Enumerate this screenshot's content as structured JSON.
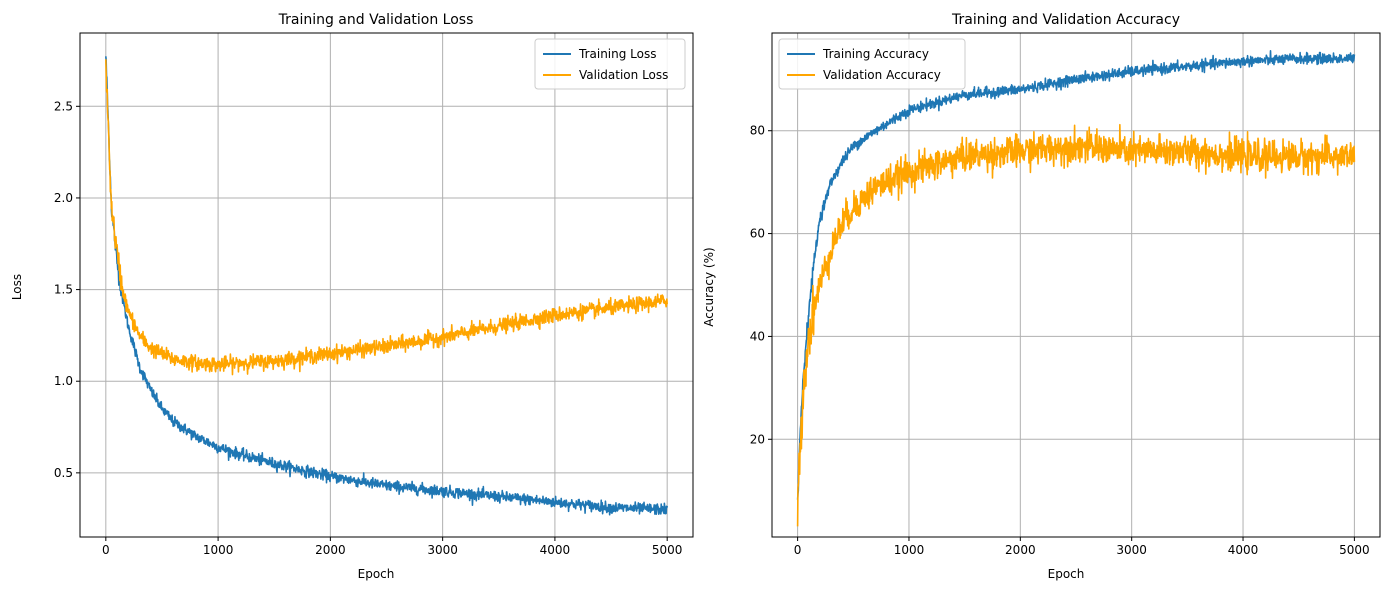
{
  "chart_data": [
    {
      "type": "line",
      "title": "Training and Validation Loss",
      "xlabel": "Epoch",
      "ylabel": "Loss",
      "xlim": [
        -230,
        5230
      ],
      "ylim": [
        0.15,
        2.9
      ],
      "xticks": [
        0,
        1000,
        2000,
        3000,
        4000,
        5000
      ],
      "xtick_labels": [
        "0",
        "1000",
        "2000",
        "3000",
        "4000",
        "5000"
      ],
      "yticks": [
        0.5,
        1.0,
        1.5,
        2.0,
        2.5
      ],
      "ytick_labels": [
        "0.5",
        "1.0",
        "1.5",
        "2.0",
        "2.5"
      ],
      "grid": true,
      "legend_position": "top-right",
      "series": [
        {
          "name": "Training Loss",
          "color": "#1f77b4",
          "x": [
            0,
            50,
            100,
            150,
            200,
            300,
            400,
            500,
            600,
            800,
            1000,
            1200,
            1500,
            2000,
            2500,
            3000,
            3500,
            4000,
            4500,
            5000
          ],
          "y": [
            2.78,
            1.95,
            1.65,
            1.45,
            1.3,
            1.08,
            0.95,
            0.85,
            0.78,
            0.7,
            0.64,
            0.6,
            0.55,
            0.48,
            0.43,
            0.4,
            0.37,
            0.34,
            0.31,
            0.3
          ],
          "noise": 0.015
        },
        {
          "name": "Validation Loss",
          "color": "#ffa500",
          "x": [
            0,
            50,
            100,
            150,
            200,
            300,
            400,
            500,
            600,
            800,
            1000,
            1200,
            1500,
            2000,
            2500,
            3000,
            3500,
            4000,
            4500,
            5000
          ],
          "y": [
            2.73,
            1.95,
            1.7,
            1.5,
            1.38,
            1.25,
            1.18,
            1.15,
            1.12,
            1.1,
            1.09,
            1.1,
            1.11,
            1.15,
            1.19,
            1.24,
            1.3,
            1.36,
            1.4,
            1.44
          ],
          "noise": 0.02
        }
      ]
    },
    {
      "type": "line",
      "title": "Training and Validation Accuracy",
      "xlabel": "Epoch",
      "ylabel": "Accuracy (%)",
      "xlim": [
        -230,
        5230
      ],
      "ylim": [
        1,
        99
      ],
      "xticks": [
        0,
        1000,
        2000,
        3000,
        4000,
        5000
      ],
      "xtick_labels": [
        "0",
        "1000",
        "2000",
        "3000",
        "4000",
        "5000"
      ],
      "yticks": [
        20,
        40,
        60,
        80
      ],
      "ytick_labels": [
        "20",
        "40",
        "60",
        "80"
      ],
      "grid": true,
      "legend_position": "top-left",
      "series": [
        {
          "name": "Training Accuracy",
          "color": "#1f77b4",
          "x": [
            0,
            25,
            50,
            100,
            150,
            200,
            300,
            400,
            500,
            700,
            1000,
            1500,
            2000,
            2500,
            3000,
            3500,
            4000,
            4500,
            5000
          ],
          "y": [
            8,
            22,
            32,
            45,
            55,
            63,
            70,
            74,
            77,
            80,
            84,
            87,
            88,
            90,
            91.5,
            92.5,
            93.5,
            94,
            94
          ],
          "noise": 0.5
        },
        {
          "name": "Validation Accuracy",
          "color": "#ffa500",
          "x": [
            0,
            25,
            50,
            100,
            150,
            200,
            300,
            400,
            500,
            700,
            1000,
            1500,
            2000,
            2500,
            3000,
            3500,
            4000,
            4500,
            5000
          ],
          "y": [
            7,
            18,
            30,
            40,
            46,
            50,
            57,
            62,
            65,
            69,
            72,
            75,
            76,
            77,
            76,
            76,
            75,
            75,
            75
          ],
          "noise": 1.5
        }
      ]
    }
  ]
}
